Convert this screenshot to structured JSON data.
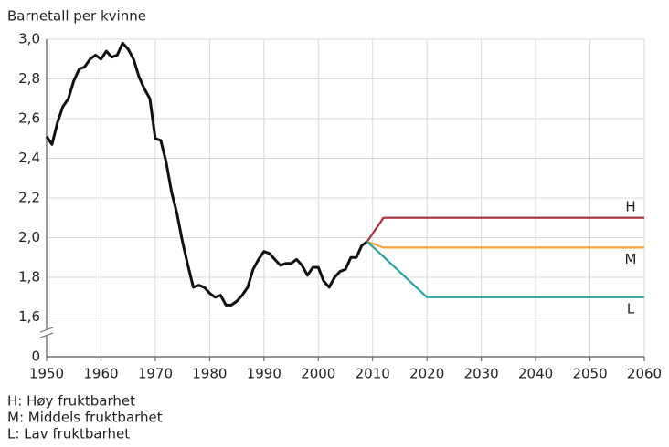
{
  "chart_data": {
    "type": "line",
    "ylabel": "Barnetall per kvinne",
    "xlim": [
      1950,
      2060
    ],
    "xticks": [
      1950,
      1960,
      1970,
      1980,
      1990,
      2000,
      2010,
      2020,
      2030,
      2040,
      2050,
      2060
    ],
    "ylim": [
      1.4,
      3.0
    ],
    "y_break": true,
    "yticks": [
      {
        "value": 0,
        "label": "0"
      },
      {
        "value": 1.6,
        "label": "1,6"
      },
      {
        "value": 1.8,
        "label": "1,8"
      },
      {
        "value": 2.0,
        "label": "2,0"
      },
      {
        "value": 2.2,
        "label": "2,2"
      },
      {
        "value": 2.4,
        "label": "2,4"
      },
      {
        "value": 2.6,
        "label": "2,6"
      },
      {
        "value": 2.8,
        "label": "2,8"
      },
      {
        "value": 3.0,
        "label": "3,0"
      }
    ],
    "grid": true,
    "series": [
      {
        "color": "#111111",
        "x": [
          1950,
          1951,
          1952,
          1953,
          1954,
          1955,
          1956,
          1957,
          1958,
          1959,
          1960,
          1961,
          1962,
          1963,
          1964,
          1965,
          1966,
          1967,
          1968,
          1969,
          1970,
          1971,
          1972,
          1973,
          1974,
          1975,
          1976,
          1977,
          1978,
          1979,
          1980,
          1981,
          1982,
          1983,
          1984,
          1985,
          1986,
          1987,
          1988,
          1989,
          1990,
          1991,
          1992,
          1993,
          1994,
          1995,
          1996,
          1997,
          1998,
          1999,
          2000,
          2001,
          2002,
          2003,
          2004,
          2005,
          2006,
          2007,
          2008,
          2009
        ],
        "values": [
          2.51,
          2.47,
          2.58,
          2.66,
          2.7,
          2.79,
          2.85,
          2.86,
          2.9,
          2.92,
          2.9,
          2.94,
          2.91,
          2.92,
          2.98,
          2.95,
          2.9,
          2.81,
          2.75,
          2.7,
          2.5,
          2.49,
          2.38,
          2.23,
          2.12,
          1.98,
          1.86,
          1.75,
          1.76,
          1.75,
          1.72,
          1.7,
          1.71,
          1.66,
          1.66,
          1.68,
          1.71,
          1.75,
          1.84,
          1.89,
          1.93,
          1.92,
          1.89,
          1.86,
          1.87,
          1.87,
          1.89,
          1.86,
          1.81,
          1.85,
          1.85,
          1.78,
          1.75,
          1.8,
          1.83,
          1.84,
          1.9,
          1.9,
          1.96,
          1.98
        ]
      },
      {
        "name": "H",
        "color": "#a3303c",
        "x": [
          2009,
          2012,
          2060
        ],
        "values": [
          1.98,
          2.1,
          2.1
        ]
      },
      {
        "name": "M",
        "color": "#f2a33a",
        "x": [
          2009,
          2012,
          2060
        ],
        "values": [
          1.98,
          1.95,
          1.95
        ]
      },
      {
        "name": "L",
        "color": "#2aa39f",
        "x": [
          2009,
          2020,
          2060
        ],
        "values": [
          1.98,
          1.7,
          1.7
        ]
      }
    ],
    "notes": [
      "H: Høy fruktbarhet",
      "M: Middels fruktbarhet",
      "L: Lav fruktbarhet"
    ]
  }
}
